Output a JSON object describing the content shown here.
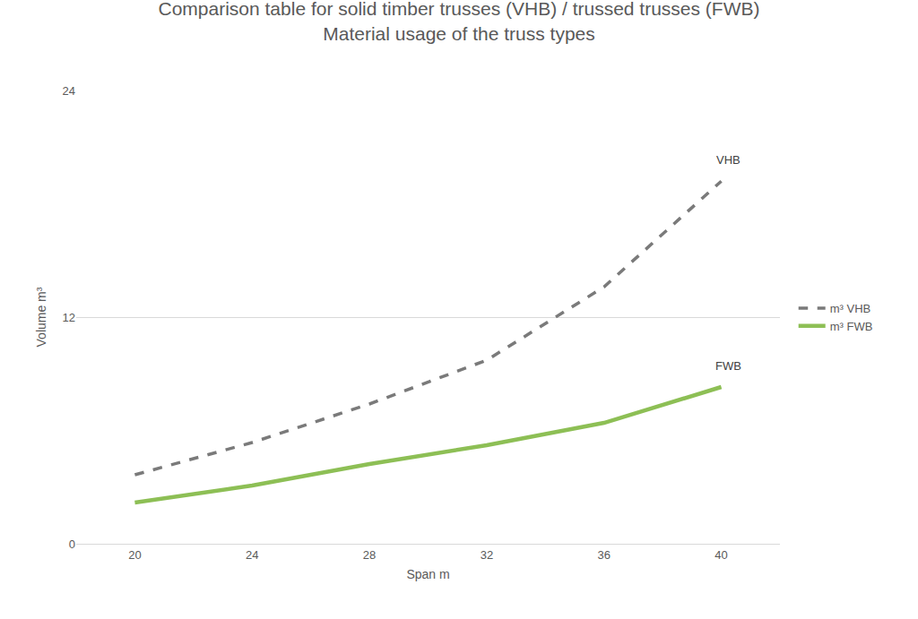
{
  "chart_data": {
    "type": "line",
    "title": "Comparison table for solid timber trusses (VHB) / trussed trusses (FWB)",
    "subtitle": "Material usage of the truss types",
    "x_label": "Span m",
    "y_label": "Volume m³",
    "x": [
      20,
      24,
      28,
      32,
      36,
      40
    ],
    "series": [
      {
        "name": "m³ VHB",
        "color": "#7a7a7a",
        "line_style": "dash",
        "end_label": "VHB",
        "values": [
          3.65,
          5.36,
          7.4,
          9.72,
          13.6,
          19.2
        ]
      },
      {
        "name": "m³ FWB",
        "color": "#8dbf55",
        "line_style": "solid",
        "end_label": "FWB",
        "values": [
          2.18,
          3.08,
          4.22,
          5.22,
          6.4,
          8.3
        ]
      }
    ],
    "xlim": [
      18,
      42
    ],
    "xticks": [
      20,
      24,
      28,
      32,
      36,
      40
    ],
    "ylim": [
      0,
      24
    ],
    "yticks": [
      0,
      12,
      24
    ],
    "grid": true,
    "legend": "right"
  }
}
